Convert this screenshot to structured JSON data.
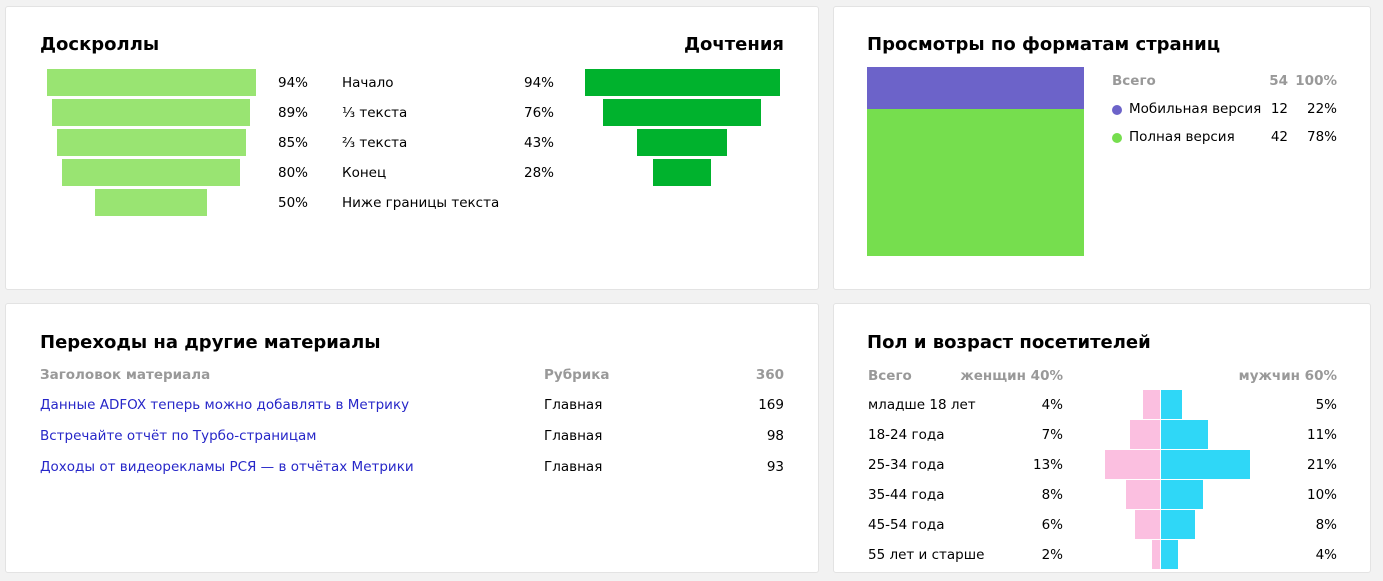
{
  "scroll_card": {
    "title_left": "Доскроллы",
    "title_right": "Дочтения",
    "rows": [
      {
        "label": "Начало",
        "scroll_pct": "94%",
        "read_pct": "94%"
      },
      {
        "label": "⅓ текста",
        "scroll_pct": "89%",
        "read_pct": "76%"
      },
      {
        "label": "⅔ текста",
        "scroll_pct": "85%",
        "read_pct": "43%"
      },
      {
        "label": "Конец",
        "scroll_pct": "80%",
        "read_pct": "28%"
      },
      {
        "label": "Ниже границы текста",
        "scroll_pct": "50%",
        "read_pct": ""
      }
    ]
  },
  "formats_card": {
    "title": "Просмотры по форматам страниц",
    "total_label": "Всего",
    "total_count": "54",
    "total_pct": "100%",
    "items": [
      {
        "label": "Мобильная версия",
        "count": "12",
        "pct": "22%",
        "color": "#6c63c9"
      },
      {
        "label": "Полная версия",
        "count": "42",
        "pct": "78%",
        "color": "#76de4e"
      }
    ]
  },
  "transitions_card": {
    "title": "Переходы на другие материалы",
    "headers": {
      "title": "Заголовок материала",
      "rubric": "Рубрика",
      "count": "360"
    },
    "rows": [
      {
        "title": "Данные ADFOX теперь можно добавлять в Метрику",
        "rubric": "Главная",
        "count": "169"
      },
      {
        "title": "Встречайте отчёт по Турбо-страницам",
        "rubric": "Главная",
        "count": "98"
      },
      {
        "title": "Доходы от видеорекламы РСЯ — в отчётах Метрики",
        "rubric": "Главная",
        "count": "93"
      }
    ]
  },
  "demo_card": {
    "title": "Пол и возраст посетителей",
    "headers": {
      "total": "Всего",
      "women": "женщин 40%",
      "men": "мужчин 60%"
    },
    "rows": [
      {
        "age": "младше 18 лет",
        "women": "4%",
        "men": "5%"
      },
      {
        "age": "18-24 года",
        "women": "7%",
        "men": "11%"
      },
      {
        "age": "25-34 года",
        "women": "13%",
        "men": "21%"
      },
      {
        "age": "35-44 года",
        "women": "8%",
        "men": "10%"
      },
      {
        "age": "45-54 года",
        "women": "6%",
        "men": "8%"
      },
      {
        "age": "55 лет и старше",
        "women": "2%",
        "men": "4%"
      }
    ],
    "colors": {
      "women": "#fbbfe0",
      "men": "#2fd7f7"
    }
  },
  "chart_data": [
    {
      "type": "bar",
      "title": "Доскроллы",
      "categories": [
        "Начало",
        "⅓ текста",
        "⅔ текста",
        "Конец",
        "Ниже границы текста"
      ],
      "values": [
        94,
        89,
        85,
        80,
        50
      ],
      "color": "#99e472"
    },
    {
      "type": "bar",
      "title": "Дочтения",
      "categories": [
        "Начало",
        "⅓ текста",
        "⅔ текста",
        "Конец"
      ],
      "values": [
        94,
        76,
        43,
        28
      ],
      "color": "#00b22d"
    },
    {
      "type": "bar",
      "title": "Просмотры по форматам страниц",
      "categories": [
        "Мобильная версия",
        "Полная версия"
      ],
      "values": [
        12,
        42
      ],
      "percent": [
        22,
        78
      ],
      "stacked": true
    },
    {
      "type": "bar",
      "title": "Пол и возраст посетителей",
      "categories": [
        "младше 18 лет",
        "18-24 года",
        "25-34 года",
        "35-44 года",
        "45-54 года",
        "55 лет и старше"
      ],
      "series": [
        {
          "name": "женщин 40%",
          "values": [
            4,
            7,
            13,
            8,
            6,
            2
          ]
        },
        {
          "name": "мужчин 60%",
          "values": [
            5,
            11,
            21,
            10,
            8,
            4
          ]
        }
      ]
    }
  ]
}
